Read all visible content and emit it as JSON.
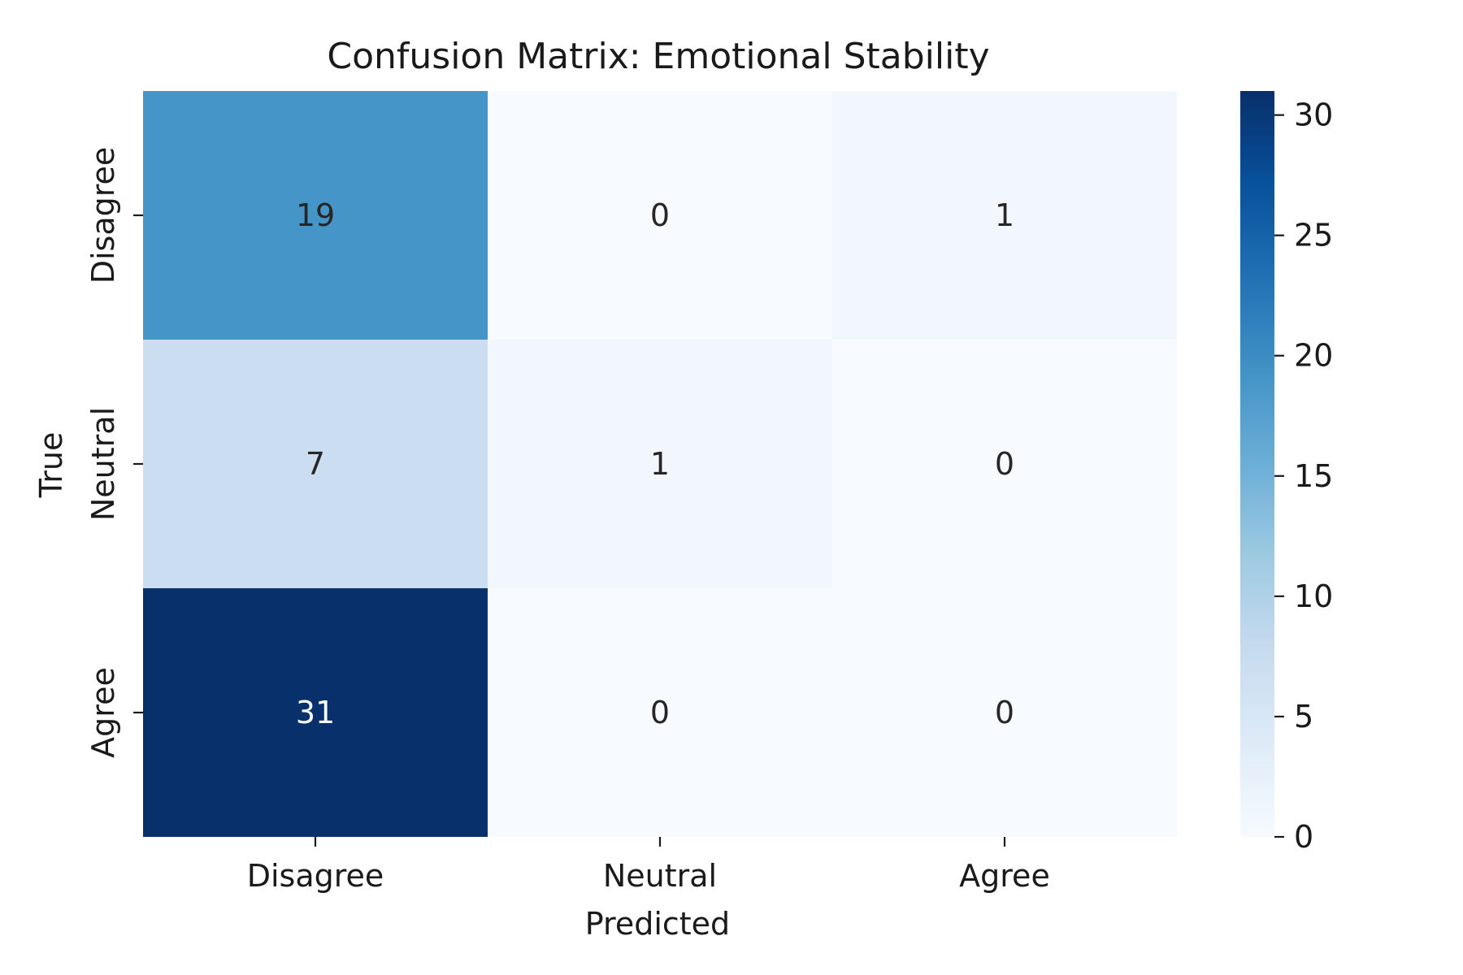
{
  "chart_data": {
    "type": "heatmap",
    "title": "Confusion Matrix: Emotional Stability",
    "xlabel": "Predicted",
    "ylabel": "True",
    "x_categories": [
      "Disagree",
      "Neutral",
      "Agree"
    ],
    "y_categories": [
      "Disagree",
      "Neutral",
      "Agree"
    ],
    "values": [
      [
        19,
        0,
        1
      ],
      [
        7,
        1,
        0
      ],
      [
        31,
        0,
        0
      ]
    ],
    "colormap": "Blues",
    "colorbar": {
      "min": 0,
      "max": 31,
      "ticks": [
        0,
        5,
        10,
        15,
        20,
        25,
        30
      ],
      "tick_labels": [
        "0",
        "5",
        "10",
        "15",
        "20",
        "25",
        "30"
      ]
    },
    "annotation_colors": {
      "dark_text": "#262626",
      "light_text": "#ffffff"
    },
    "grid": false
  }
}
